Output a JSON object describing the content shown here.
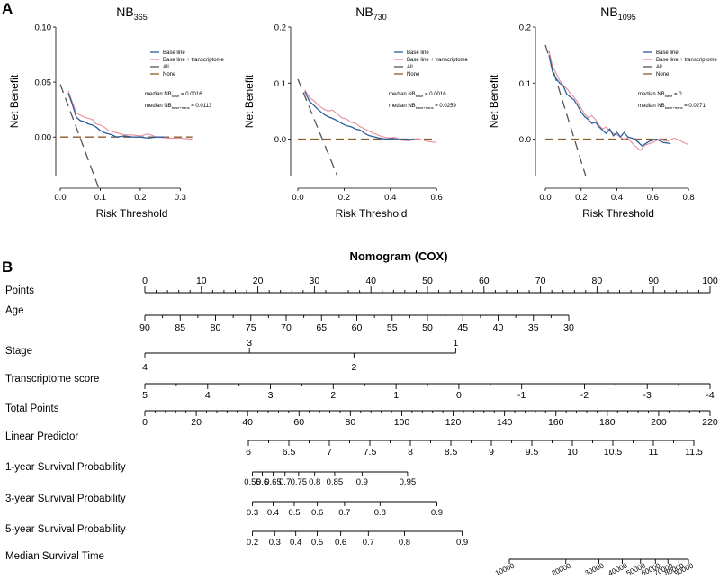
{
  "panel_a": {
    "label": "A",
    "plots": [
      {
        "title_main": "NB",
        "title_sub": "365",
        "xlabel": "Risk Threshold",
        "ylabel": "Net Benefit",
        "xlim": [
          0,
          0.36
        ],
        "ylim": [
          -0.035,
          0.1
        ],
        "xticks": [
          0.0,
          0.1,
          0.2,
          0.3
        ],
        "xtick_labels": [
          "0.0",
          "0.1",
          "0.2",
          "0.3"
        ],
        "yticks": [
          0.0,
          0.05,
          0.1
        ],
        "ytick_labels": [
          "0.00",
          "0.05",
          "0.10"
        ],
        "legend": [
          "Base line",
          "Base line + transcriptome",
          "All",
          "None"
        ],
        "median_base": "median NB",
        "median_base_sub": "base",
        "median_base_value": " = 0.0016",
        "median_trans": "median NB",
        "median_trans_sub": "base+trans",
        "median_trans_value": " = 0.0113"
      },
      {
        "title_main": "NB",
        "title_sub": "730",
        "xlabel": "Risk Threshold",
        "ylabel": "Net Benefit",
        "xlim": [
          0,
          0.65
        ],
        "ylim": [
          -0.065,
          0.2
        ],
        "xticks": [
          0.0,
          0.2,
          0.4,
          0.6
        ],
        "xtick_labels": [
          "0.0",
          "0.2",
          "0.4",
          "0.6"
        ],
        "yticks": [
          0.0,
          0.1,
          0.2
        ],
        "ytick_labels": [
          "0.0",
          "0.1",
          "0.2"
        ],
        "legend": [
          "Base line",
          "Base line + transcriptome",
          "All",
          "None"
        ],
        "median_base": "median NB",
        "median_base_sub": "base",
        "median_base_value": " = 0.0016",
        "median_trans": "median NB",
        "median_trans_sub": "base+trans",
        "median_trans_value": " = 0.0259"
      },
      {
        "title_main": "NB",
        "title_sub": "1095",
        "xlabel": "Risk Threshold",
        "ylabel": "Net Benefit",
        "xlim": [
          0,
          0.85
        ],
        "ylim": [
          -0.065,
          0.2
        ],
        "xticks": [
          0.0,
          0.2,
          0.4,
          0.6,
          0.8
        ],
        "xtick_labels": [
          "0.0",
          "0.2",
          "0.4",
          "0.6",
          "0.8"
        ],
        "yticks": [
          0.0,
          0.1,
          0.2
        ],
        "ytick_labels": [
          "0.0",
          "0.1",
          "0.2"
        ],
        "legend": [
          "Base line",
          "Base line + transcriptome",
          "All",
          "None"
        ],
        "median_base": "median NB",
        "median_base_sub": "base",
        "median_base_value": " = 0",
        "median_trans": "median NB",
        "median_trans_sub": "base+trans",
        "median_trans_value": " = 0.0271"
      }
    ]
  },
  "panel_b": {
    "label": "B",
    "title": "Nomogram (COX)",
    "rows": [
      "Points",
      "Age",
      "Stage",
      "Transcriptome score",
      "Total Points",
      "Linear Predictor",
      "1-year Survival Probability",
      "3-year Survival Probability",
      "5-year Survival Probability",
      "Median Survival Time"
    ]
  },
  "colors": {
    "base": "#2a5d9a",
    "trans": "#e58b9a",
    "all": "#555555",
    "none": "#8b5a2b"
  },
  "chart_data": [
    {
      "type": "line",
      "title": "NB365",
      "xlabel": "Risk Threshold",
      "ylabel": "Net Benefit",
      "series": [
        {
          "name": "Base line",
          "x": [
            0.02,
            0.03,
            0.04,
            0.05,
            0.06,
            0.07,
            0.08,
            0.09,
            0.1,
            0.11,
            0.12,
            0.13,
            0.14,
            0.16,
            0.18,
            0.2,
            0.22,
            0.24,
            0.26
          ],
          "values": [
            0.04,
            0.03,
            0.018,
            0.015,
            0.014,
            0.012,
            0.011,
            0.009,
            0.006,
            0.004,
            0.003,
            0.002,
            0.0,
            0.001,
            0.0,
            0.0,
            -0.001,
            0.0,
            0.0
          ]
        },
        {
          "name": "Base line + transcriptome",
          "x": [
            0.02,
            0.03,
            0.04,
            0.05,
            0.06,
            0.07,
            0.08,
            0.09,
            0.1,
            0.11,
            0.12,
            0.14,
            0.16,
            0.18,
            0.2,
            0.22,
            0.24,
            0.27,
            0.3,
            0.33
          ],
          "values": [
            0.042,
            0.032,
            0.022,
            0.02,
            0.018,
            0.017,
            0.016,
            0.012,
            0.011,
            0.009,
            0.006,
            0.004,
            0.002,
            0.002,
            0.001,
            0.003,
            0.0,
            -0.001,
            -0.001,
            -0.002
          ]
        },
        {
          "name": "All",
          "x": [
            0.0,
            0.1
          ],
          "values": [
            0.048,
            -0.05
          ]
        },
        {
          "name": "None",
          "x": [
            0.0,
            0.33
          ],
          "values": [
            0.0,
            0.0
          ]
        }
      ]
    },
    {
      "type": "line",
      "title": "NB730",
      "xlabel": "Risk Threshold",
      "ylabel": "Net Benefit",
      "series": [
        {
          "name": "Base line",
          "x": [
            0.03,
            0.05,
            0.07,
            0.09,
            0.11,
            0.13,
            0.15,
            0.17,
            0.19,
            0.21,
            0.23,
            0.25,
            0.27,
            0.29,
            0.31,
            0.33,
            0.35,
            0.38,
            0.41,
            0.44,
            0.47,
            0.5
          ],
          "values": [
            0.085,
            0.068,
            0.06,
            0.052,
            0.045,
            0.04,
            0.037,
            0.033,
            0.028,
            0.024,
            0.022,
            0.018,
            0.016,
            0.01,
            0.006,
            0.004,
            0.002,
            0.0,
            0.001,
            -0.001,
            0.0,
            -0.001
          ]
        },
        {
          "name": "Base line + transcriptome",
          "x": [
            0.03,
            0.05,
            0.07,
            0.09,
            0.11,
            0.13,
            0.15,
            0.17,
            0.19,
            0.21,
            0.23,
            0.25,
            0.27,
            0.3,
            0.33,
            0.36,
            0.39,
            0.42,
            0.45,
            0.48,
            0.52,
            0.56,
            0.6
          ],
          "values": [
            0.088,
            0.075,
            0.068,
            0.06,
            0.054,
            0.05,
            0.052,
            0.045,
            0.038,
            0.036,
            0.03,
            0.028,
            0.022,
            0.016,
            0.01,
            0.005,
            0.002,
            0.003,
            -0.002,
            -0.003,
            0.001,
            -0.004,
            -0.006
          ]
        },
        {
          "name": "All",
          "x": [
            0.0,
            0.17
          ],
          "values": [
            0.107,
            -0.065
          ]
        },
        {
          "name": "None",
          "x": [
            0.0,
            0.6
          ],
          "values": [
            0.0,
            0.0
          ]
        }
      ]
    },
    {
      "type": "line",
      "title": "NB1095",
      "xlabel": "Risk Threshold",
      "ylabel": "Net Benefit",
      "series": [
        {
          "name": "Base line",
          "x": [
            0.02,
            0.04,
            0.06,
            0.08,
            0.1,
            0.12,
            0.14,
            0.16,
            0.18,
            0.2,
            0.22,
            0.24,
            0.26,
            0.28,
            0.3,
            0.32,
            0.34,
            0.36,
            0.38,
            0.4,
            0.42,
            0.44,
            0.46,
            0.5,
            0.54,
            0.58,
            0.62,
            0.66,
            0.7
          ],
          "values": [
            0.15,
            0.12,
            0.108,
            0.1,
            0.095,
            0.08,
            0.075,
            0.07,
            0.06,
            0.048,
            0.04,
            0.035,
            0.028,
            0.03,
            0.022,
            0.016,
            0.01,
            0.018,
            0.006,
            0.012,
            0.004,
            0.012,
            0.004,
            0.0,
            -0.012,
            -0.004,
            0.0,
            -0.006,
            -0.008
          ]
        },
        {
          "name": "Base line + transcriptome",
          "x": [
            0.02,
            0.04,
            0.06,
            0.08,
            0.1,
            0.12,
            0.14,
            0.16,
            0.18,
            0.2,
            0.22,
            0.24,
            0.26,
            0.28,
            0.3,
            0.32,
            0.34,
            0.36,
            0.38,
            0.4,
            0.42,
            0.44,
            0.46,
            0.48,
            0.5,
            0.53,
            0.56,
            0.6,
            0.64,
            0.68,
            0.72,
            0.76,
            0.8
          ],
          "values": [
            0.158,
            0.13,
            0.118,
            0.105,
            0.096,
            0.09,
            0.082,
            0.075,
            0.066,
            0.055,
            0.045,
            0.038,
            0.042,
            0.035,
            0.025,
            0.018,
            0.022,
            0.014,
            0.01,
            0.008,
            0.003,
            0.0,
            0.002,
            -0.005,
            -0.012,
            -0.02,
            -0.01,
            -0.006,
            0.0,
            -0.004,
            0.002,
            -0.004,
            -0.01
          ]
        },
        {
          "name": "All",
          "x": [
            0.0,
            0.225
          ],
          "values": [
            0.168,
            -0.065
          ]
        },
        {
          "name": "None",
          "x": [
            0.0,
            0.7
          ],
          "values": [
            0.0,
            0.0
          ]
        }
      ]
    },
    {
      "type": "nomogram",
      "title": "Nomogram (COX)",
      "scales": [
        {
          "name": "Points",
          "ticks": [
            0,
            10,
            20,
            30,
            40,
            50,
            60,
            70,
            80,
            90,
            100
          ]
        },
        {
          "name": "Age",
          "ticks": [
            90,
            85,
            80,
            75,
            70,
            65,
            60,
            55,
            50,
            45,
            40,
            35,
            30
          ]
        },
        {
          "name": "Stage",
          "labels": [
            "4",
            "3",
            "2",
            "1"
          ]
        },
        {
          "name": "Transcriptome score",
          "ticks": [
            5,
            4,
            3,
            2,
            1,
            0,
            -1,
            -2,
            -3,
            -4
          ]
        },
        {
          "name": "Total Points",
          "ticks": [
            0,
            20,
            40,
            60,
            80,
            100,
            120,
            140,
            160,
            180,
            200,
            220
          ]
        },
        {
          "name": "Linear Predictor",
          "ticks": [
            6,
            6.5,
            7,
            7.5,
            8,
            8.5,
            9,
            9.5,
            10,
            10.5,
            11,
            11.5
          ]
        },
        {
          "name": "1-year Survival Probability",
          "ticks": [
            0.55,
            0.6,
            0.65,
            0.7,
            0.75,
            0.8,
            0.85,
            0.9,
            0.95
          ]
        },
        {
          "name": "3-year Survival Probability",
          "ticks": [
            0.3,
            0.4,
            0.5,
            0.6,
            0.7,
            0.8,
            0.9
          ]
        },
        {
          "name": "5-year Survival Probability",
          "ticks": [
            0.2,
            0.3,
            0.4,
            0.5,
            0.6,
            0.7,
            0.8,
            0.9
          ]
        },
        {
          "name": "Median Survival Time",
          "ticks": [
            10000,
            20000,
            30000,
            40000,
            50000,
            60000,
            70000,
            80000,
            90000
          ]
        }
      ]
    }
  ]
}
